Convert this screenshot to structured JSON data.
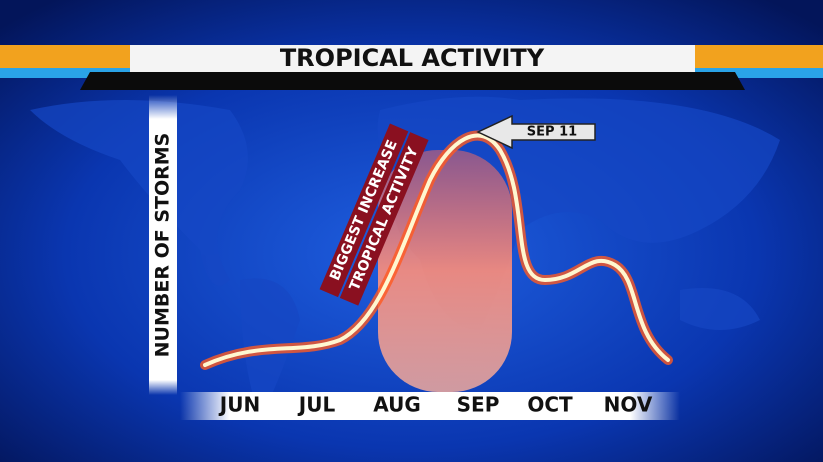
{
  "header": {
    "title": "TROPICAL ACTIVITY"
  },
  "axis": {
    "y_label": "NUMBER OF STORMS",
    "months": [
      "JUN",
      "JUL",
      "AUG",
      "SEP",
      "OCT",
      "NOV"
    ]
  },
  "annotations": {
    "increase_line1": "BIGGEST INCREASE",
    "increase_line2": "TROPICAL ACTIVITY",
    "peak": "SEP 11"
  }
}
